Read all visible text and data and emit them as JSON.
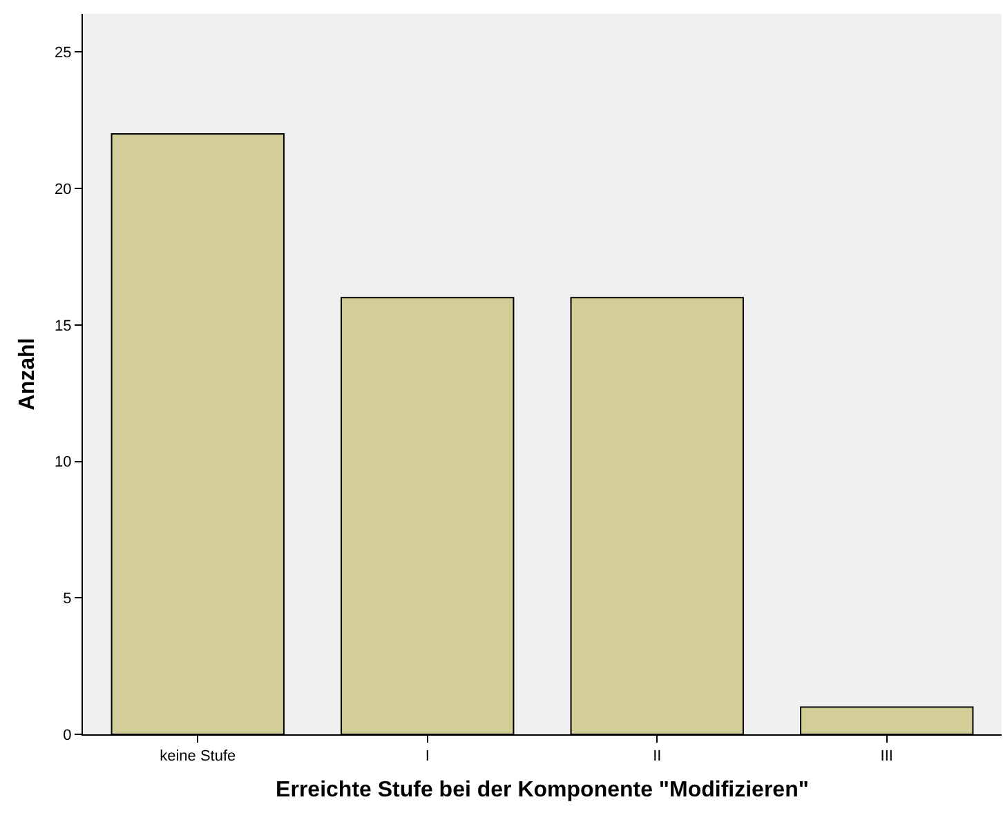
{
  "chart_data": {
    "type": "bar",
    "xlabel": "Erreichte Stufe bei der Komponente \"Modifizieren\"",
    "ylabel": "Anzahl",
    "categories": [
      "keine Stufe",
      "I",
      "II",
      "III"
    ],
    "values": [
      22,
      16,
      16,
      1
    ],
    "color": "#d3ce97",
    "ylim": [
      0,
      26.4
    ],
    "yticks": [
      0,
      5,
      10,
      15,
      20,
      25
    ],
    "grid": false
  }
}
